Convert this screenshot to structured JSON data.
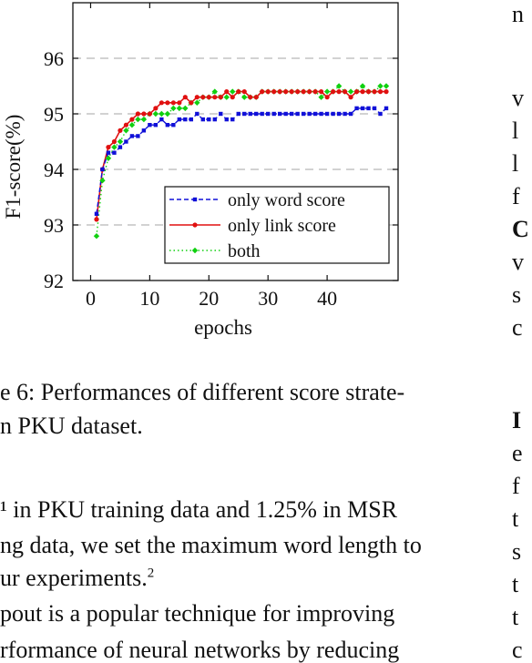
{
  "chart_data": {
    "type": "line",
    "xlabel": "epochs",
    "ylabel": "F1-score(%)",
    "xlim": [
      -3,
      52
    ],
    "ylim": [
      92,
      97
    ],
    "x_ticks": [
      "0",
      "10",
      "20",
      "30",
      "40"
    ],
    "y_ticks": [
      "92",
      "93",
      "94",
      "95",
      "96"
    ],
    "grid": "horizontal dashed",
    "legend_position": "lower-right",
    "x": [
      1,
      2,
      3,
      4,
      5,
      6,
      7,
      8,
      9,
      10,
      11,
      12,
      13,
      14,
      15,
      16,
      17,
      18,
      19,
      20,
      21,
      22,
      23,
      24,
      25,
      26,
      27,
      28,
      29,
      30,
      31,
      32,
      33,
      34,
      35,
      36,
      37,
      38,
      39,
      40,
      41,
      42,
      43,
      44,
      45,
      46,
      47,
      48,
      49,
      50
    ],
    "series": [
      {
        "name": "only word score",
        "color": "#1010d8",
        "marker": "square",
        "dash": "dashed",
        "values": [
          93.2,
          94.0,
          94.3,
          94.3,
          94.4,
          94.5,
          94.6,
          94.6,
          94.7,
          94.8,
          94.8,
          94.9,
          94.8,
          94.8,
          94.9,
          94.9,
          94.9,
          95.0,
          94.9,
          94.9,
          94.9,
          95.0,
          94.9,
          94.9,
          95.0,
          95.0,
          95.0,
          95.0,
          95.0,
          95.0,
          95.0,
          95.0,
          95.0,
          95.0,
          95.0,
          95.0,
          95.0,
          95.0,
          95.0,
          95.0,
          95.0,
          95.0,
          95.0,
          95.0,
          95.1,
          95.1,
          95.1,
          95.1,
          95.0,
          95.1
        ]
      },
      {
        "name": "only link score",
        "color": "#e01010",
        "marker": "circle",
        "dash": "solid",
        "values": [
          93.1,
          94.0,
          94.4,
          94.5,
          94.7,
          94.8,
          94.9,
          95.0,
          95.0,
          95.0,
          95.1,
          95.2,
          95.2,
          95.2,
          95.2,
          95.3,
          95.2,
          95.3,
          95.3,
          95.3,
          95.3,
          95.3,
          95.4,
          95.3,
          95.4,
          95.4,
          95.3,
          95.3,
          95.4,
          95.4,
          95.4,
          95.4,
          95.4,
          95.4,
          95.4,
          95.4,
          95.4,
          95.4,
          95.4,
          95.3,
          95.4,
          95.4,
          95.4,
          95.3,
          95.4,
          95.4,
          95.4,
          95.4,
          95.4,
          95.4
        ]
      },
      {
        "name": "both",
        "color": "#10d010",
        "marker": "diamond",
        "dash": "dotted",
        "values": [
          92.8,
          93.8,
          94.2,
          94.4,
          94.5,
          94.7,
          94.8,
          94.9,
          94.9,
          95.0,
          95.0,
          95.0,
          95.0,
          95.1,
          95.1,
          95.1,
          95.2,
          95.2,
          95.3,
          95.3,
          95.4,
          95.3,
          95.3,
          95.4,
          95.4,
          95.3,
          95.3,
          95.3,
          95.4,
          95.4,
          95.4,
          95.4,
          95.4,
          95.4,
          95.4,
          95.4,
          95.4,
          95.4,
          95.3,
          95.4,
          95.4,
          95.5,
          95.4,
          95.4,
          95.4,
          95.5,
          95.4,
          95.4,
          95.5,
          95.5
        ]
      }
    ]
  },
  "caption": {
    "line1": "e 6:  Performances of different score strate-",
    "line2": "n PKU dataset."
  },
  "body_text": {
    "line1": "¹ in PKU training data and 1.25% in MSR",
    "line2": "ng data, we set the maximum word length to",
    "line3a": "ur experiments.",
    "line3_sup": "2",
    "line4": "pout is a popular technique for improving",
    "line5": "rformance of neural networks by reducing"
  },
  "right_column": {
    "letters": [
      "n",
      "v",
      "l",
      "l",
      "f",
      "C",
      "v",
      "s",
      "c",
      "I",
      "e",
      "f",
      "t",
      "s",
      "t",
      "t",
      "c"
    ]
  }
}
